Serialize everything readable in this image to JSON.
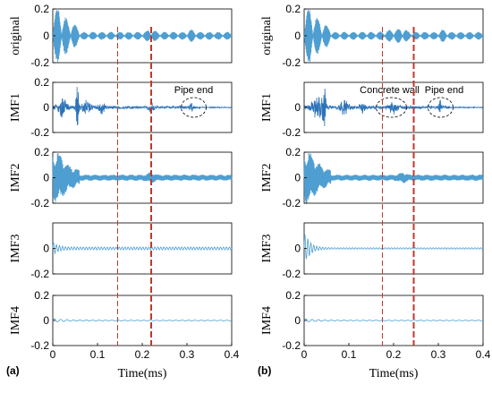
{
  "chart_data": [
    {
      "type": "line",
      "panel_label": "(a)",
      "xlabel": "Time(ms)",
      "xlim": [
        0,
        0.4
      ],
      "x_ticks": [
        "0",
        "0.1",
        "0.2",
        "0.3",
        "0.4"
      ],
      "marker_lines_ms": [
        0.145,
        0.22
      ],
      "subplots": [
        {
          "name": "original",
          "ylim": [
            -0.2,
            0.2
          ],
          "y_ticks": [
            "0.2",
            "0",
            "-0.2"
          ]
        },
        {
          "name": "IMF1",
          "ylim": [
            -0.2,
            0.2
          ],
          "y_ticks": [
            "0.2",
            "0",
            "-0.2"
          ],
          "annotations": [
            {
              "text": "Pipe end",
              "x_ms": 0.315
            }
          ]
        },
        {
          "name": "IMF2",
          "ylim": [
            -0.2,
            0.2
          ],
          "y_ticks": [
            "0.2",
            "0",
            "-0.2"
          ]
        },
        {
          "name": "IMF3",
          "ylim": [
            -0.2,
            0.2
          ],
          "y_ticks": [
            "0",
            "-0.2"
          ]
        },
        {
          "name": "IMF4",
          "ylim": [
            -0.2,
            0.2
          ],
          "y_ticks": [
            "0.2",
            "0",
            "-0.2"
          ]
        }
      ]
    },
    {
      "type": "line",
      "panel_label": "(b)",
      "xlabel": "Time(ms)",
      "xlim": [
        0,
        0.4
      ],
      "x_ticks": [
        "0",
        "0.1",
        "0.2",
        "0.3",
        "0.4"
      ],
      "marker_lines_ms": [
        0.175,
        0.245
      ],
      "subplots": [
        {
          "name": "original",
          "ylim": [
            -0.2,
            0.2
          ],
          "y_ticks": [
            "0.2",
            "0",
            "-0.2"
          ]
        },
        {
          "name": "IMF1",
          "ylim": [
            -0.2,
            0.2
          ],
          "y_ticks": [
            "0",
            "-0.2"
          ],
          "annotations": [
            {
              "text": "Concrete wall",
              "x_ms": 0.195
            },
            {
              "text": "Pipe end",
              "x_ms": 0.305
            }
          ]
        },
        {
          "name": "IMF2",
          "ylim": [
            -0.2,
            0.2
          ],
          "y_ticks": [
            "0.2",
            "0",
            "-0.2"
          ]
        },
        {
          "name": "IMF3",
          "ylim": [
            -0.2,
            0.2
          ],
          "y_ticks": [
            "0",
            "-0.2"
          ]
        },
        {
          "name": "IMF4",
          "ylim": [
            -0.2,
            0.2
          ],
          "y_ticks": [
            "0.2",
            "0",
            "-0.2"
          ]
        }
      ]
    }
  ]
}
